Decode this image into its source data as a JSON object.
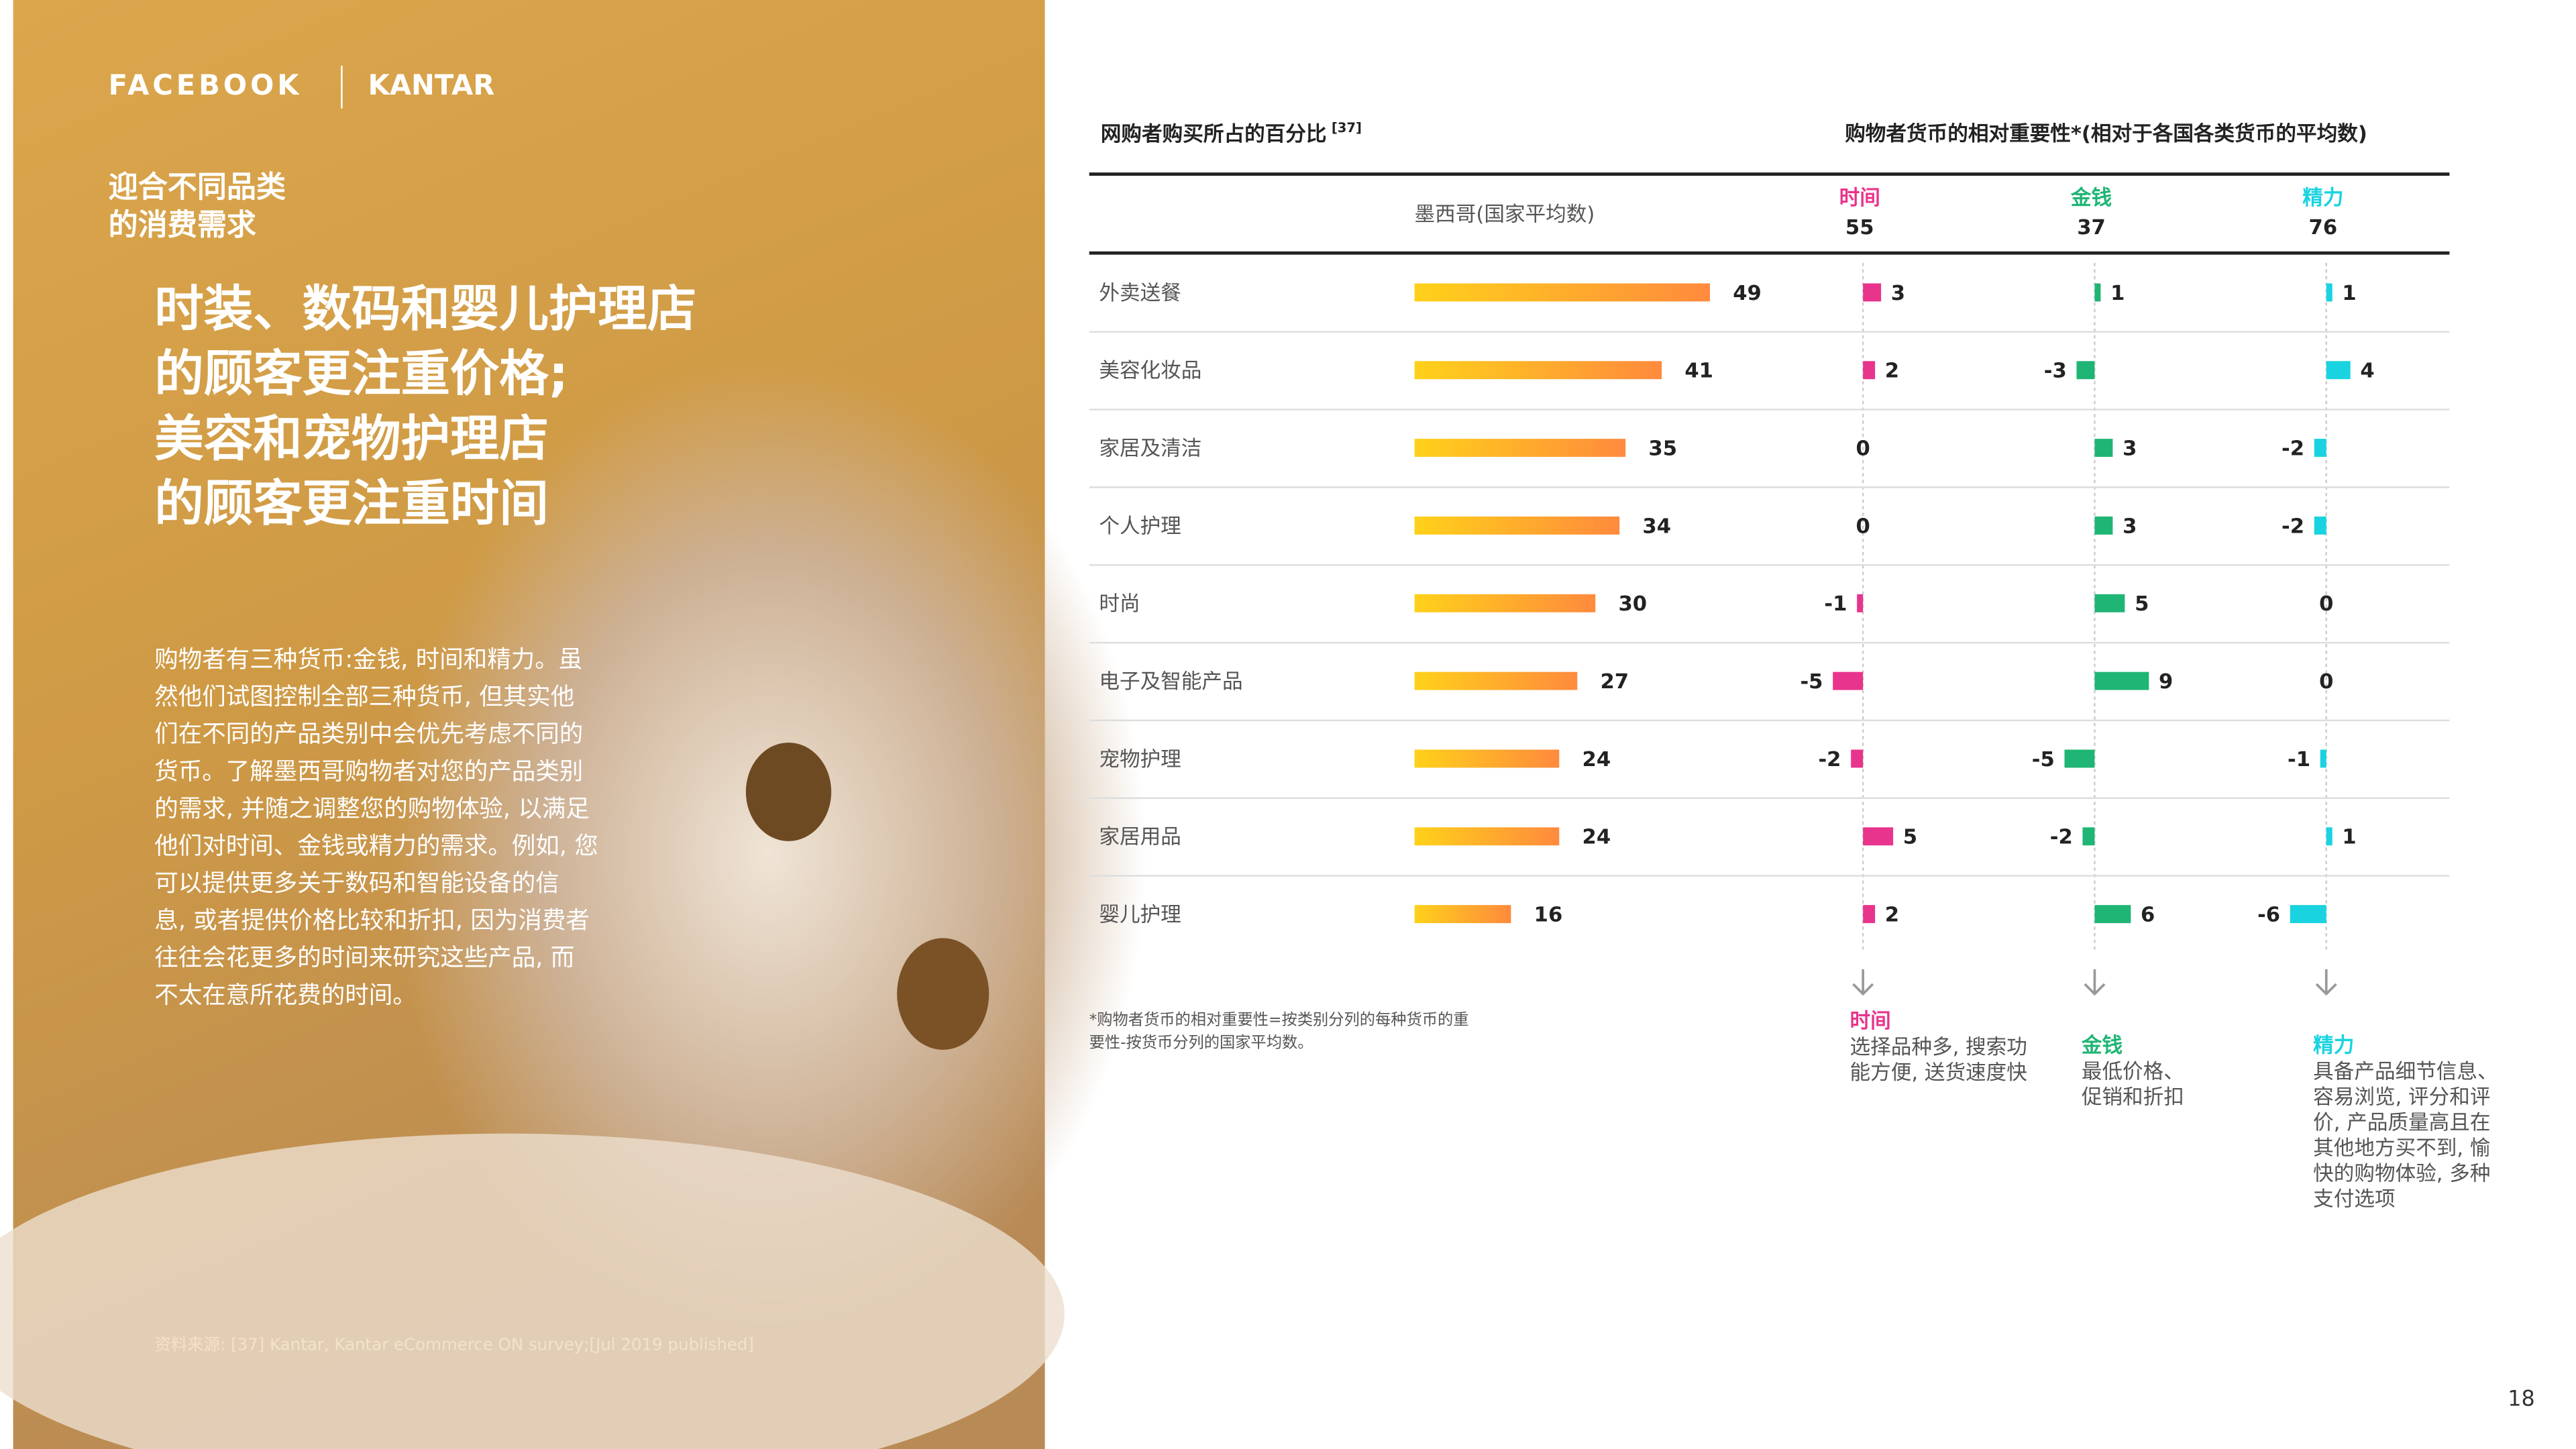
{
  "header": {
    "brand_left": "FACEBOOK",
    "brand_right": "KANTAR"
  },
  "left": {
    "section_title": [
      "迎合不同品类",
      "的消费需求"
    ],
    "headline": [
      "时装、数码和婴儿护理店",
      "的顾客更注重价格;",
      "美容和宠物护理店",
      "的顾客更注重时间"
    ],
    "body": [
      "购物者有三种货币:金钱, 时间和精力。虽",
      "然他们试图控制全部三种货币, 但其实他",
      "们在不同的产品类别中会优先考虑不同的",
      "货币。了解墨西哥购物者对您的产品类别",
      "的需求, 并随之调整您的购物体验, 以满足",
      "他们对时间、金钱或精力的需求。例如, 您",
      "可以提供更多关于数码和智能设备的信",
      "息, 或者提供价格比较和折扣, 因为消费者",
      "往往会花更多的时间来研究这些产品, 而",
      "不太在意所花费的时间。"
    ],
    "source": "资料来源: [37] Kantar, Kantar eCommerce ON survey;[Jul 2019 published]"
  },
  "chart": {
    "left_title": "网购者购买所占的百分比",
    "left_title_ref": "[37]",
    "right_title": "购物者货币的相对重要性*(相对于各国各类货币的平均数)",
    "country": "墨西哥(国家平均数)",
    "categories": [
      "外卖送餐",
      "美容化妆品",
      "家居及清洁",
      "个人护理",
      "时尚",
      "电子及智能产品",
      "宠物护理",
      "家居用品",
      "婴儿护理"
    ],
    "share": [
      49,
      41,
      35,
      34,
      30,
      27,
      24,
      24,
      16
    ],
    "share_colors": [
      "#ffd11a",
      "#ff8a3d"
    ],
    "currencies": [
      {
        "name": "时间",
        "average": 55,
        "color": "#e8348c",
        "values": [
          3,
          2,
          0,
          0,
          -1,
          -5,
          -2,
          5,
          2
        ],
        "note_title": "时间",
        "note": [
          "选择品种多, 搜索功",
          "能方便, 送货速度快"
        ]
      },
      {
        "name": "金钱",
        "average": 37,
        "color": "#1fb574",
        "values": [
          1,
          -3,
          3,
          3,
          5,
          9,
          -5,
          -2,
          6
        ],
        "note_title": "金钱",
        "note": [
          "最低价格、",
          "促销和折扣"
        ]
      },
      {
        "name": "精力",
        "average": 76,
        "color": "#19d3e0",
        "values": [
          1,
          4,
          -2,
          -2,
          0,
          0,
          -1,
          1,
          -6
        ],
        "note_title": "精力",
        "note": [
          "具备产品细节信息、",
          "容易浏览, 评分和评",
          "价, 产品质量高且在",
          "其他地方买不到, 愉",
          "快的购物体验, 多种",
          "支付选项"
        ]
      }
    ],
    "footnote": [
      "*购物者货币的相对重要性=按类别分列的每种货币的重",
      "要性-按货币分列的国家平均数。"
    ]
  },
  "page_number": "18"
}
